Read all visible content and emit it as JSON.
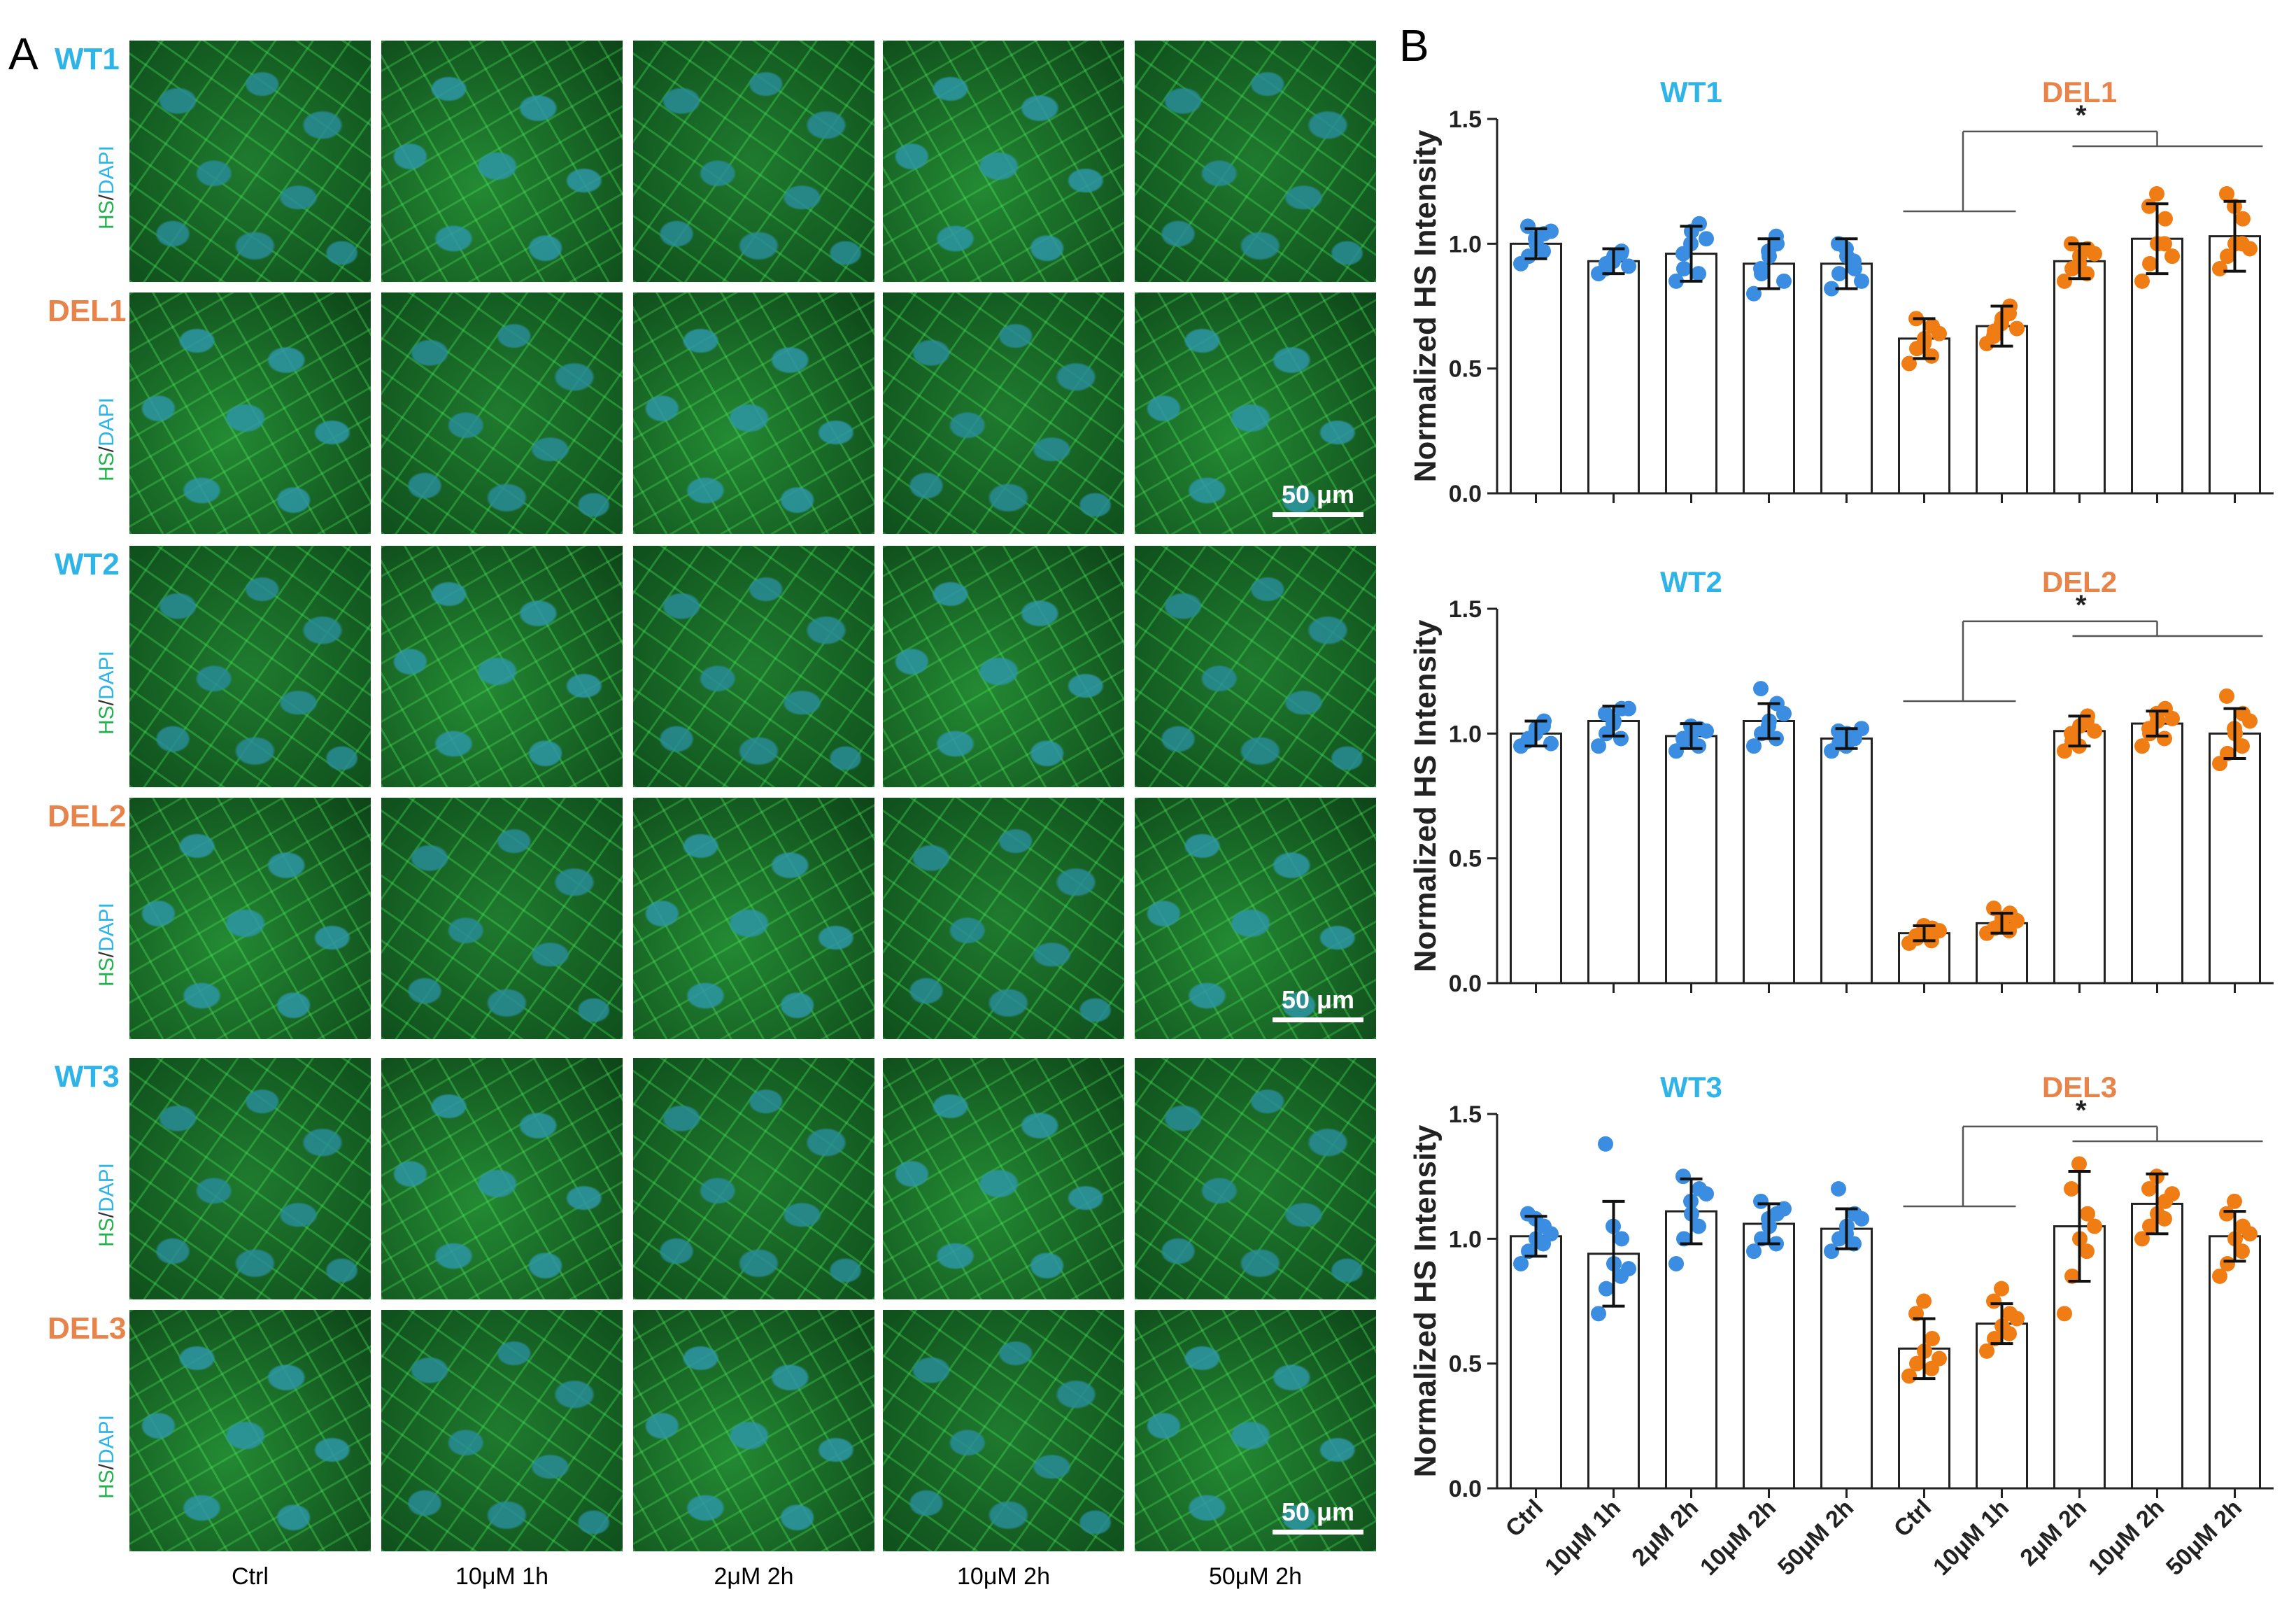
{
  "figure": {
    "panelA": {
      "letter": "A",
      "stain": {
        "hs": "HS",
        "sep": "/",
        "dapi": "DAPI"
      },
      "rows": [
        {
          "label": "WT1",
          "group": "wt"
        },
        {
          "label": "DEL1",
          "group": "del"
        },
        {
          "label": "WT2",
          "group": "wt"
        },
        {
          "label": "DEL2",
          "group": "del"
        },
        {
          "label": "WT3",
          "group": "wt"
        },
        {
          "label": "DEL3",
          "group": "del"
        }
      ],
      "columns": [
        "Ctrl",
        "10μM 1h",
        "2μM 2h",
        "10μM 2h",
        "50μM 2h"
      ],
      "scale_bar": "50 μm"
    },
    "panelB": {
      "letter": "B"
    }
  },
  "colors": {
    "wt": "#2fb4e8",
    "del": "#e8834a",
    "wt_points": "#3a8de0",
    "del_points": "#f07d14",
    "hs": "#22b14c"
  },
  "chart_data": [
    {
      "type": "bar",
      "ylabel": "Normalized HS Intensity",
      "ylim": [
        0,
        1.5
      ],
      "yticks": [
        "0.0",
        "0.5",
        "1.0",
        "1.5"
      ],
      "group_labels": {
        "wt": "WT1",
        "del": "DEL1"
      },
      "categories": [
        "Ctrl",
        "10μM 1h",
        "2μM 2h",
        "10μM 2h",
        "50μM 2h",
        "Ctrl",
        "10μM 1h",
        "2μM 2h",
        "10μM 2h",
        "50μM 2h"
      ],
      "series": [
        {
          "name": "mean",
          "values": [
            1.0,
            0.93,
            0.96,
            0.92,
            0.92,
            0.62,
            0.67,
            0.93,
            1.02,
            1.03
          ]
        }
      ],
      "error": [
        0.06,
        0.05,
        0.11,
        0.1,
        0.1,
        0.08,
        0.08,
        0.07,
        0.14,
        0.14
      ],
      "points": [
        [
          0.92,
          0.95,
          1.0,
          1.04,
          1.07,
          1.02,
          0.97,
          1.05
        ],
        [
          0.88,
          0.92,
          0.95,
          0.97,
          0.9,
          0.93,
          0.96,
          0.91
        ],
        [
          0.85,
          0.9,
          1.05,
          1.08,
          0.96,
          1.0,
          0.88,
          1.02
        ],
        [
          0.8,
          0.88,
          0.95,
          1.0,
          0.9,
          0.97,
          1.03,
          0.85
        ],
        [
          0.82,
          0.88,
          0.95,
          0.9,
          1.0,
          0.98,
          0.93,
          0.85
        ],
        [
          0.52,
          0.58,
          0.62,
          0.67,
          0.7,
          0.6,
          0.55,
          0.64
        ],
        [
          0.6,
          0.65,
          0.7,
          0.75,
          0.63,
          0.68,
          0.72,
          0.66
        ],
        [
          0.85,
          0.9,
          0.95,
          0.98,
          1.0,
          0.92,
          0.88,
          0.96
        ],
        [
          0.85,
          0.92,
          1.0,
          1.1,
          1.15,
          1.2,
          1.0,
          0.95
        ],
        [
          0.9,
          0.95,
          1.0,
          1.1,
          1.2,
          1.15,
          1.0,
          0.98
        ]
      ],
      "significance": "*"
    },
    {
      "type": "bar",
      "ylabel": "Normalized HS Intensity",
      "ylim": [
        0,
        1.5
      ],
      "yticks": [
        "0.0",
        "0.5",
        "1.0",
        "1.5"
      ],
      "group_labels": {
        "wt": "WT2",
        "del": "DEL2"
      },
      "categories": [
        "Ctrl",
        "10μM 1h",
        "2μM 2h",
        "10μM 2h",
        "50μM 2h",
        "Ctrl",
        "10μM 1h",
        "2μM 2h",
        "10μM 2h",
        "50μM 2h"
      ],
      "series": [
        {
          "name": "mean",
          "values": [
            1.0,
            1.05,
            0.99,
            1.05,
            0.98,
            0.2,
            0.24,
            1.01,
            1.04,
            1.0
          ]
        }
      ],
      "error": [
        0.05,
        0.06,
        0.05,
        0.07,
        0.04,
        0.03,
        0.04,
        0.06,
        0.05,
        0.1
      ],
      "points": [
        [
          0.95,
          0.98,
          1.02,
          1.05,
          0.97,
          1.0,
          1.03,
          0.96
        ],
        [
          0.95,
          1.0,
          1.05,
          1.1,
          1.08,
          1.04,
          0.98,
          1.1
        ],
        [
          0.93,
          0.97,
          1.0,
          1.02,
          0.98,
          1.03,
          0.95,
          1.01
        ],
        [
          0.95,
          1.0,
          1.05,
          1.12,
          1.18,
          1.03,
          0.98,
          1.08
        ],
        [
          0.93,
          0.96,
          1.0,
          0.98,
          1.01,
          0.95,
          0.99,
          1.02
        ],
        [
          0.16,
          0.18,
          0.2,
          0.22,
          0.19,
          0.23,
          0.17,
          0.21
        ],
        [
          0.2,
          0.22,
          0.26,
          0.28,
          0.3,
          0.24,
          0.21,
          0.25
        ],
        [
          0.93,
          0.97,
          1.03,
          1.07,
          1.0,
          0.95,
          1.05,
          1.01
        ],
        [
          0.95,
          1.0,
          1.05,
          1.1,
          1.02,
          1.08,
          0.98,
          1.06
        ],
        [
          0.88,
          0.92,
          1.0,
          1.08,
          1.15,
          1.02,
          0.95,
          1.05
        ]
      ],
      "significance": "*"
    },
    {
      "type": "bar",
      "ylabel": "Normalized HS Intensity",
      "ylim": [
        0,
        1.5
      ],
      "yticks": [
        "0.0",
        "0.5",
        "1.0",
        "1.5"
      ],
      "group_labels": {
        "wt": "WT3",
        "del": "DEL3"
      },
      "categories": [
        "Ctrl",
        "10μM 1h",
        "2μM 2h",
        "10μM 2h",
        "50μM 2h",
        "Ctrl",
        "10μM 1h",
        "2μM 2h",
        "10μM 2h",
        "50μM 2h"
      ],
      "series": [
        {
          "name": "mean",
          "values": [
            1.01,
            0.94,
            1.11,
            1.06,
            1.04,
            0.56,
            0.66,
            1.05,
            1.14,
            1.01
          ]
        }
      ],
      "error": [
        0.08,
        0.21,
        0.13,
        0.08,
        0.08,
        0.12,
        0.08,
        0.22,
        0.12,
        0.1
      ],
      "points": [
        [
          0.9,
          0.95,
          1.0,
          1.05,
          1.1,
          1.08,
          0.98,
          1.02
        ],
        [
          0.7,
          0.8,
          0.9,
          1.0,
          1.38,
          1.05,
          0.85,
          0.88
        ],
        [
          0.9,
          1.0,
          1.1,
          1.2,
          1.25,
          1.15,
          1.05,
          1.18
        ],
        [
          0.95,
          1.0,
          1.05,
          1.1,
          1.15,
          1.08,
          0.98,
          1.12
        ],
        [
          0.95,
          1.0,
          1.05,
          1.1,
          1.2,
          1.02,
          0.98,
          1.08
        ],
        [
          0.45,
          0.5,
          0.55,
          0.6,
          0.7,
          0.75,
          0.48,
          0.52
        ],
        [
          0.55,
          0.6,
          0.65,
          0.7,
          0.75,
          0.8,
          0.62,
          0.68
        ],
        [
          0.7,
          0.85,
          1.0,
          1.1,
          1.2,
          1.3,
          0.95,
          1.05
        ],
        [
          1.0,
          1.05,
          1.1,
          1.15,
          1.2,
          1.25,
          1.08,
          1.18
        ],
        [
          0.85,
          0.9,
          1.0,
          1.05,
          1.1,
          1.15,
          0.95,
          1.02
        ]
      ],
      "significance": "*"
    }
  ]
}
